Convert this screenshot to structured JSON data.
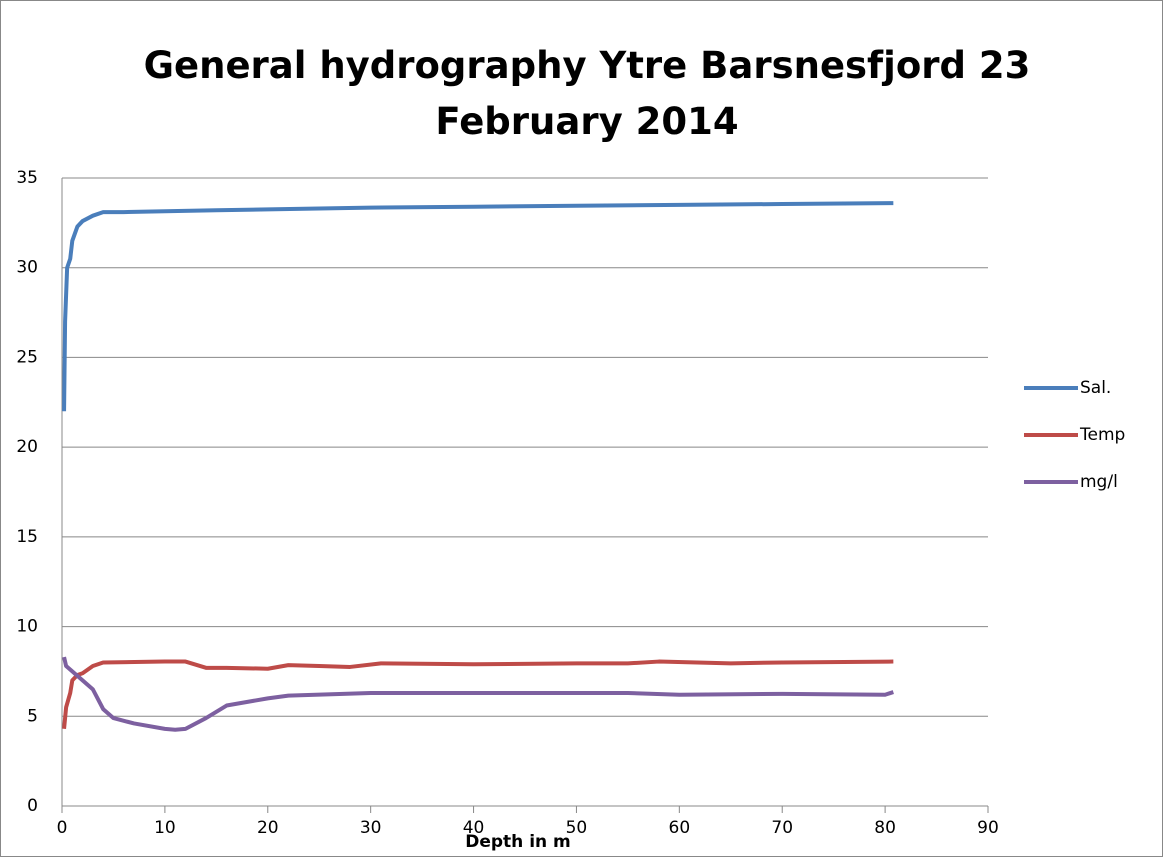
{
  "chart_data": {
    "type": "line",
    "title": "General hydrography Ytre Barsnesfjord 23 February 2014",
    "x_label": "Depth in m",
    "xlim": [
      0,
      90
    ],
    "xticks": [
      0,
      10,
      20,
      30,
      40,
      50,
      60,
      70,
      80,
      90
    ],
    "ylim": [
      0,
      35
    ],
    "yticks": [
      0,
      5,
      10,
      15,
      20,
      25,
      30,
      35
    ],
    "grid": true,
    "legend": "right",
    "series": [
      {
        "name": "Sal.",
        "color": "#4a7ebb",
        "x": [
          0.2,
          0.3,
          0.5,
          0.8,
          1,
          1.5,
          2,
          3,
          4,
          6,
          10,
          15,
          20,
          30,
          40,
          50,
          60,
          70,
          80.8
        ],
        "values": [
          22,
          27,
          30,
          30.5,
          31.5,
          32.3,
          32.6,
          32.9,
          33.1,
          33.1,
          33.15,
          33.2,
          33.25,
          33.35,
          33.4,
          33.45,
          33.5,
          33.55,
          33.6
        ]
      },
      {
        "name": "Temp",
        "color": "#be4b48",
        "x": [
          0.2,
          0.4,
          0.8,
          1,
          1.5,
          2,
          3,
          4,
          10,
          12,
          14,
          16,
          20,
          22,
          25,
          28,
          31,
          40,
          50,
          55,
          58,
          65,
          70,
          80.8
        ],
        "values": [
          4.3,
          5.5,
          6.3,
          7.0,
          7.3,
          7.4,
          7.8,
          8.0,
          8.05,
          8.05,
          7.7,
          7.7,
          7.65,
          7.85,
          7.8,
          7.75,
          7.95,
          7.9,
          7.95,
          7.95,
          8.05,
          7.95,
          8.0,
          8.05
        ]
      },
      {
        "name": "mg/l",
        "color": "#7d60a0",
        "x": [
          0.2,
          0.4,
          1,
          2,
          3,
          4,
          5,
          7,
          10,
          11,
          12,
          14,
          16,
          20,
          22,
          30,
          40,
          55,
          60,
          70,
          80,
          80.8
        ],
        "values": [
          8.3,
          7.8,
          7.5,
          7.0,
          6.5,
          5.4,
          4.9,
          4.6,
          4.3,
          4.25,
          4.3,
          4.9,
          5.6,
          6.0,
          6.15,
          6.3,
          6.3,
          6.3,
          6.2,
          6.25,
          6.2,
          6.35
        ]
      }
    ]
  }
}
